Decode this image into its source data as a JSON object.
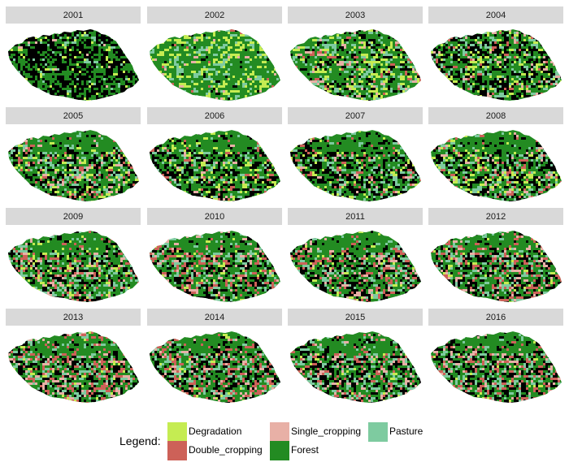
{
  "panels": [
    {
      "year": "2001",
      "forest": 0.45,
      "black": 0.45,
      "degradation": 0.05,
      "double_cropping": 0.0,
      "single_cropping": 0.01,
      "pasture": 0.04
    },
    {
      "year": "2002",
      "forest": 0.7,
      "black": 0.02,
      "degradation": 0.15,
      "double_cropping": 0.01,
      "single_cropping": 0.02,
      "pasture": 0.1
    },
    {
      "year": "2003",
      "forest": 0.55,
      "black": 0.15,
      "degradation": 0.12,
      "double_cropping": 0.04,
      "single_cropping": 0.04,
      "pasture": 0.1
    },
    {
      "year": "2004",
      "forest": 0.45,
      "black": 0.3,
      "degradation": 0.08,
      "double_cropping": 0.04,
      "single_cropping": 0.03,
      "pasture": 0.1
    },
    {
      "year": "2005",
      "forest": 0.48,
      "black": 0.2,
      "degradation": 0.08,
      "double_cropping": 0.08,
      "single_cropping": 0.04,
      "pasture": 0.12
    },
    {
      "year": "2006",
      "forest": 0.48,
      "black": 0.25,
      "degradation": 0.1,
      "double_cropping": 0.05,
      "single_cropping": 0.02,
      "pasture": 0.1
    },
    {
      "year": "2007",
      "forest": 0.45,
      "black": 0.3,
      "degradation": 0.05,
      "double_cropping": 0.06,
      "single_cropping": 0.04,
      "pasture": 0.1
    },
    {
      "year": "2008",
      "forest": 0.42,
      "black": 0.25,
      "degradation": 0.08,
      "double_cropping": 0.06,
      "single_cropping": 0.05,
      "pasture": 0.14
    },
    {
      "year": "2009",
      "forest": 0.45,
      "black": 0.22,
      "degradation": 0.06,
      "double_cropping": 0.09,
      "single_cropping": 0.05,
      "pasture": 0.13
    },
    {
      "year": "2010",
      "forest": 0.45,
      "black": 0.22,
      "degradation": 0.03,
      "double_cropping": 0.1,
      "single_cropping": 0.06,
      "pasture": 0.14
    },
    {
      "year": "2011",
      "forest": 0.45,
      "black": 0.22,
      "degradation": 0.04,
      "double_cropping": 0.11,
      "single_cropping": 0.06,
      "pasture": 0.12
    },
    {
      "year": "2012",
      "forest": 0.42,
      "black": 0.24,
      "degradation": 0.04,
      "double_cropping": 0.12,
      "single_cropping": 0.06,
      "pasture": 0.12
    },
    {
      "year": "2013",
      "forest": 0.42,
      "black": 0.2,
      "degradation": 0.03,
      "double_cropping": 0.14,
      "single_cropping": 0.09,
      "pasture": 0.12
    },
    {
      "year": "2014",
      "forest": 0.42,
      "black": 0.22,
      "degradation": 0.02,
      "double_cropping": 0.14,
      "single_cropping": 0.08,
      "pasture": 0.12
    },
    {
      "year": "2015",
      "forest": 0.42,
      "black": 0.24,
      "degradation": 0.02,
      "double_cropping": 0.1,
      "single_cropping": 0.08,
      "pasture": 0.14
    },
    {
      "year": "2016",
      "forest": 0.42,
      "black": 0.24,
      "degradation": 0.02,
      "double_cropping": 0.11,
      "single_cropping": 0.07,
      "pasture": 0.14
    }
  ],
  "legend": {
    "title": "Legend:",
    "items": [
      {
        "label": "Degradation",
        "color": "#c5ec52"
      },
      {
        "label": "Double_cropping",
        "color": "#cd6158"
      },
      {
        "label": "Single_cropping",
        "color": "#e8b0a6"
      },
      {
        "label": "Forest",
        "color": "#238b22"
      },
      {
        "label": "Pasture",
        "color": "#7ecba0"
      }
    ]
  },
  "colors": {
    "forest": "#238b22",
    "black": "#000000",
    "degradation": "#c5ec52",
    "double_cropping": "#cd6158",
    "single_cropping": "#e8b0a6",
    "pasture": "#7ecba0",
    "strip": "#d9d9d9",
    "background": "#ffffff"
  }
}
